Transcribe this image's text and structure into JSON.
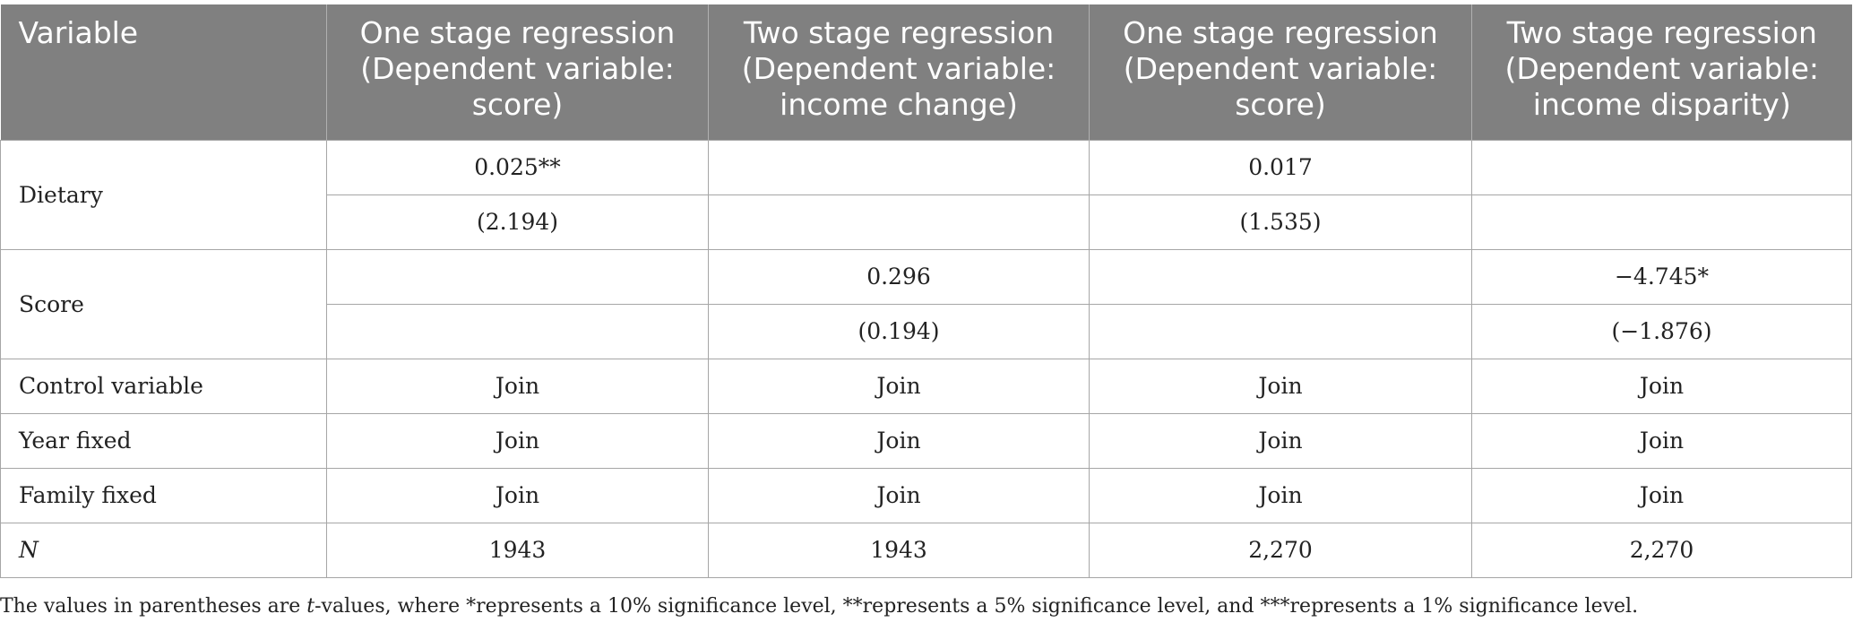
{
  "table": {
    "headers": [
      "Variable",
      "One stage regression (Dependent variable: score)",
      "Two stage regression (Dependent variable: income change)",
      "One stage regression (Dependent variable: score)",
      "Two stage regression (Dependent variable: income disparity)"
    ],
    "rows": {
      "dietary": {
        "label": "Dietary",
        "coef": [
          "0.025**",
          "",
          "0.017",
          ""
        ],
        "tval": [
          "(2.194)",
          "",
          "(1.535)",
          ""
        ]
      },
      "score": {
        "label": "Score",
        "coef": [
          "",
          "0.296",
          "",
          "−4.745*"
        ],
        "tval": [
          "",
          "(0.194)",
          "",
          "(−1.876)"
        ]
      },
      "control": {
        "label": "Control variable",
        "values": [
          "Join",
          "Join",
          "Join",
          "Join"
        ]
      },
      "year": {
        "label": "Year fixed",
        "values": [
          "Join",
          "Join",
          "Join",
          "Join"
        ]
      },
      "family": {
        "label": "Family fixed",
        "values": [
          "Join",
          "Join",
          "Join",
          "Join"
        ]
      },
      "n": {
        "label": "N",
        "values": [
          "1943",
          "1943",
          "2,270",
          "2,270"
        ]
      }
    }
  },
  "footnote": {
    "prefix": "The values in parentheses are ",
    "t_italic": "t",
    "suffix": "-values, where *represents a 10% significance level, **represents a 5% significance level, and ***represents a 1% significance level."
  },
  "colors": {
    "header_bg": "#808080",
    "header_text": "#ffffff",
    "grid_line": "#a6a6a6"
  }
}
